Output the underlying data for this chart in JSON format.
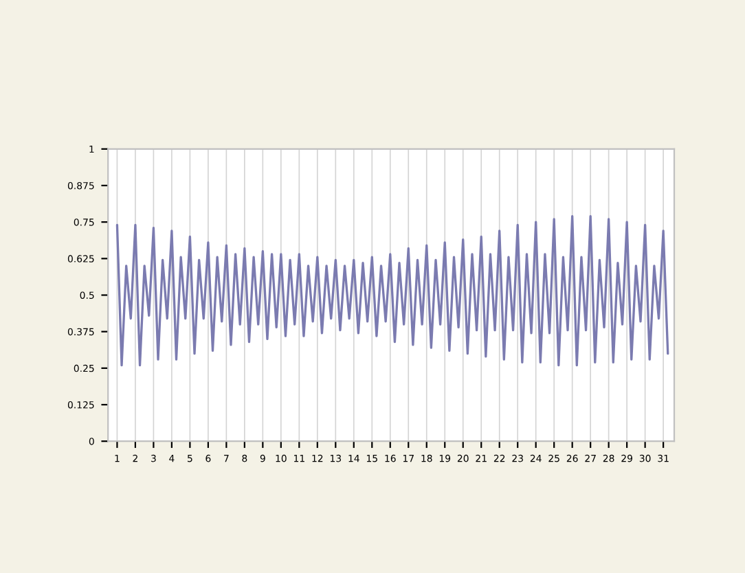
{
  "chart_data": {
    "type": "line",
    "x": [
      1,
      1.25,
      1.5,
      1.75,
      2,
      2.25,
      2.5,
      2.75,
      3,
      3.25,
      3.5,
      3.75,
      4,
      4.25,
      4.5,
      4.75,
      5,
      5.25,
      5.5,
      5.75,
      6,
      6.25,
      6.5,
      6.75,
      7,
      7.25,
      7.5,
      7.75,
      8,
      8.25,
      8.5,
      8.75,
      9,
      9.25,
      9.5,
      9.75,
      10,
      10.25,
      10.5,
      10.75,
      11,
      11.25,
      11.5,
      11.75,
      12,
      12.25,
      12.5,
      12.75,
      13,
      13.25,
      13.5,
      13.75,
      14,
      14.25,
      14.5,
      14.75,
      15,
      15.25,
      15.5,
      15.75,
      16,
      16.25,
      16.5,
      16.75,
      17,
      17.25,
      17.5,
      17.75,
      18,
      18.25,
      18.5,
      18.75,
      19,
      19.25,
      19.5,
      19.75,
      20,
      20.25,
      20.5,
      20.75,
      21,
      21.25,
      21.5,
      21.75,
      22,
      22.25,
      22.5,
      22.75,
      23,
      23.25,
      23.5,
      23.75,
      24,
      24.25,
      24.5,
      24.75,
      25,
      25.25,
      25.5,
      25.75,
      26,
      26.25,
      26.5,
      26.75,
      27,
      27.25,
      27.5,
      27.75,
      28,
      28.25,
      28.5,
      28.75,
      29,
      29.25,
      29.5,
      29.75,
      30,
      30.25,
      30.5,
      30.75,
      31,
      31.25
    ],
    "series": [
      {
        "color": "#7b7bb0",
        "values": [
          0.74,
          0.26,
          0.6,
          0.42,
          0.74,
          0.26,
          0.6,
          0.43,
          0.73,
          0.28,
          0.62,
          0.42,
          0.72,
          0.28,
          0.63,
          0.42,
          0.7,
          0.3,
          0.62,
          0.42,
          0.68,
          0.31,
          0.63,
          0.41,
          0.67,
          0.33,
          0.64,
          0.4,
          0.66,
          0.34,
          0.63,
          0.4,
          0.65,
          0.35,
          0.64,
          0.39,
          0.64,
          0.36,
          0.62,
          0.4,
          0.64,
          0.36,
          0.6,
          0.41,
          0.63,
          0.37,
          0.6,
          0.42,
          0.62,
          0.38,
          0.6,
          0.42,
          0.62,
          0.37,
          0.61,
          0.41,
          0.63,
          0.36,
          0.6,
          0.41,
          0.64,
          0.34,
          0.61,
          0.4,
          0.66,
          0.33,
          0.62,
          0.4,
          0.67,
          0.32,
          0.62,
          0.4,
          0.68,
          0.31,
          0.63,
          0.39,
          0.69,
          0.3,
          0.64,
          0.38,
          0.7,
          0.29,
          0.64,
          0.38,
          0.72,
          0.28,
          0.63,
          0.38,
          0.74,
          0.27,
          0.64,
          0.37,
          0.75,
          0.27,
          0.64,
          0.37,
          0.76,
          0.26,
          0.63,
          0.38,
          0.77,
          0.26,
          0.63,
          0.38,
          0.77,
          0.27,
          0.62,
          0.39,
          0.76,
          0.27,
          0.61,
          0.4,
          0.75,
          0.28,
          0.6,
          0.41,
          0.74,
          0.28,
          0.6,
          0.42,
          0.72,
          0.3
        ]
      }
    ],
    "xlim": [
      0.5,
      31.6
    ],
    "ylim": [
      0,
      1
    ],
    "xticks": [
      1,
      2,
      3,
      4,
      5,
      6,
      7,
      8,
      9,
      10,
      11,
      12,
      13,
      14,
      15,
      16,
      17,
      18,
      19,
      20,
      21,
      22,
      23,
      24,
      25,
      26,
      27,
      28,
      29,
      30,
      31
    ],
    "yticks": [
      0,
      0.125,
      0.25,
      0.375,
      0.5,
      0.625,
      0.75,
      0.875,
      1
    ],
    "grid": "x",
    "line_style": "solid",
    "marker": "none"
  }
}
